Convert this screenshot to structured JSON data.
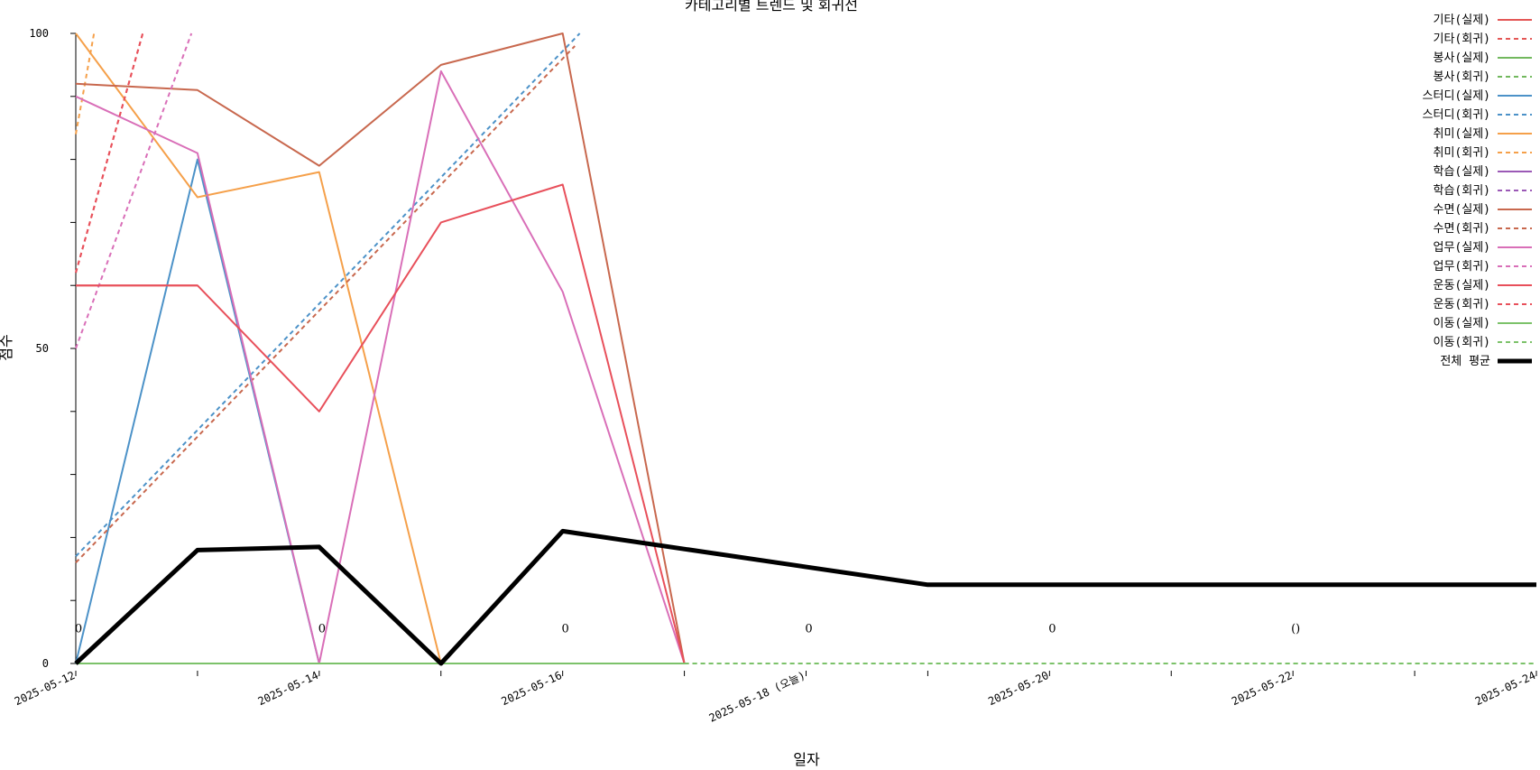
{
  "chart_data": {
    "type": "line",
    "title": "카테고리별 트렌드 및 회귀선",
    "xlabel": "일자",
    "ylabel": "점수",
    "xlim": [
      "2025-05-12",
      "2025-05-24"
    ],
    "ylim": [
      0,
      100
    ],
    "grid": false,
    "legend_position": "top-right",
    "x_ticks": [
      "2025-05-12",
      "2025-05-13",
      "2025-05-14",
      "2025-05-15",
      "2025-05-16",
      "2025-05-17",
      "2025-05-18",
      "2025-05-19",
      "2025-05-20",
      "2025-05-21",
      "2025-05-22",
      "2025-05-23",
      "2025-05-24"
    ],
    "x_tick_labels": [
      "2025-05-12",
      "",
      "2025-05-14",
      "",
      "2025-05-16",
      "",
      "2025-05-18 (오늘)",
      "",
      "2025-05-20",
      "",
      "2025-05-22",
      "",
      "2025-05-24"
    ],
    "y_ticks": [
      0,
      10,
      20,
      30,
      40,
      50,
      60,
      70,
      80,
      90,
      100
    ],
    "y_tick_labels": [
      "0",
      "",
      "",
      "",
      "",
      "50",
      "",
      "",
      "",
      "",
      "100"
    ],
    "annotations": [
      {
        "x": "2025-05-12",
        "y": 5.5,
        "text": "0"
      },
      {
        "x": "2025-05-14",
        "y": 5.5,
        "text": "0"
      },
      {
        "x": "2025-05-16",
        "y": 5.5,
        "text": "0"
      },
      {
        "x": "2025-05-18",
        "y": 5.5,
        "text": "0"
      },
      {
        "x": "2025-05-20",
        "y": 5.5,
        "text": "0"
      },
      {
        "x": "2025-05-22",
        "y": 5.5,
        "text": "()"
      }
    ],
    "series": [
      {
        "name": "기타(실제)",
        "color": "#e45756",
        "dash": false,
        "width": 2,
        "x": [
          "2025-05-12",
          "2025-05-13"
        ],
        "y": [
          60,
          60
        ]
      },
      {
        "name": "기타(회귀)",
        "color": "#e45756",
        "dash": true,
        "width": 2,
        "x": [
          "2025-05-12",
          "2025-05-12.55"
        ],
        "y": [
          62,
          100
        ]
      },
      {
        "name": "봉사(실제)",
        "color": "#72b85e",
        "dash": false,
        "width": 2,
        "x": [
          "2025-05-12",
          "2025-05-17"
        ],
        "y": [
          0,
          0
        ]
      },
      {
        "name": "봉사(회귀)",
        "color": "#72b85e",
        "dash": true,
        "width": 2,
        "x": [
          "2025-05-17",
          "2025-05-24"
        ],
        "y": [
          0,
          0
        ]
      },
      {
        "name": "스터디(실제)",
        "color": "#4c92c8",
        "dash": false,
        "width": 2,
        "x": [
          "2025-05-12",
          "2025-05-13",
          "2025-05-14"
        ],
        "y": [
          0,
          80,
          0
        ]
      },
      {
        "name": "스터디(회귀)",
        "color": "#4c92c8",
        "dash": true,
        "width": 2,
        "x": [
          "2025-05-12",
          "2025-05-16.14"
        ],
        "y": [
          17,
          100
        ]
      },
      {
        "name": "취미(실제)",
        "color": "#f5a04a",
        "dash": false,
        "width": 2,
        "x": [
          "2025-05-12",
          "2025-05-13",
          "2025-05-14",
          "2025-05-15"
        ],
        "y": [
          100,
          74,
          78,
          0
        ]
      },
      {
        "name": "취미(회귀)",
        "color": "#f5a04a",
        "dash": true,
        "width": 2,
        "x": [
          "2025-05-12",
          "2025-05-12.15"
        ],
        "y": [
          84,
          100
        ]
      },
      {
        "name": "학습(실제)",
        "color": "#9b59b6",
        "dash": false,
        "width": 2,
        "x": [],
        "y": []
      },
      {
        "name": "학습(회귀)",
        "color": "#9b59b6",
        "dash": true,
        "width": 2,
        "x": [],
        "y": []
      },
      {
        "name": "수면(실제)",
        "color": "#c8684e",
        "dash": false,
        "width": 2,
        "x": [
          "2025-05-12",
          "2025-05-13",
          "2025-05-14",
          "2025-05-15",
          "2025-05-16",
          "2025-05-17"
        ],
        "y": [
          92,
          91,
          79,
          95,
          100,
          0
        ]
      },
      {
        "name": "수면(회귀)",
        "color": "#c8684e",
        "dash": true,
        "width": 2,
        "x": [
          "2025-05-12",
          "2025-05-16.1"
        ],
        "y": [
          16,
          98
        ]
      },
      {
        "name": "업무(실제)",
        "color": "#d96fb8",
        "dash": false,
        "width": 2,
        "x": [
          "2025-05-12",
          "2025-05-13",
          "2025-05-14",
          "2025-05-15",
          "2025-05-16",
          "2025-05-17"
        ],
        "y": [
          90,
          81,
          0,
          94,
          59,
          0
        ]
      },
      {
        "name": "업무(회귀)",
        "color": "#d96fb8",
        "dash": true,
        "width": 2,
        "x": [
          "2025-05-12",
          "2025-05-12.95"
        ],
        "y": [
          50,
          100
        ]
      },
      {
        "name": "운동(실제)",
        "color": "#e8505b",
        "dash": false,
        "width": 2,
        "x": [
          "2025-05-12",
          "2025-05-13",
          "2025-05-14",
          "2025-05-15",
          "2025-05-16",
          "2025-05-17"
        ],
        "y": [
          60,
          60,
          40,
          70,
          76,
          0
        ]
      },
      {
        "name": "운동(회귀)",
        "color": "#e8505b",
        "dash": true,
        "width": 2,
        "x": [
          "2025-05-12",
          "2025-05-12.55"
        ],
        "y": [
          62,
          100
        ]
      },
      {
        "name": "이동(실제)",
        "color": "#7cc26a",
        "dash": false,
        "width": 2,
        "x": [
          "2025-05-12",
          "2025-05-17"
        ],
        "y": [
          0,
          0
        ]
      },
      {
        "name": "이동(회귀)",
        "color": "#7cc26a",
        "dash": true,
        "width": 2,
        "x": [
          "2025-05-17",
          "2025-05-24"
        ],
        "y": [
          0,
          0
        ]
      },
      {
        "name": "전체 평균",
        "color": "#000000",
        "dash": false,
        "width": 5,
        "x": [
          "2025-05-12",
          "2025-05-13",
          "2025-05-14",
          "2025-05-15",
          "2025-05-16",
          "2025-05-19",
          "2025-05-24"
        ],
        "y": [
          0,
          18,
          18.5,
          0,
          21,
          12.5,
          12.5
        ]
      }
    ]
  }
}
